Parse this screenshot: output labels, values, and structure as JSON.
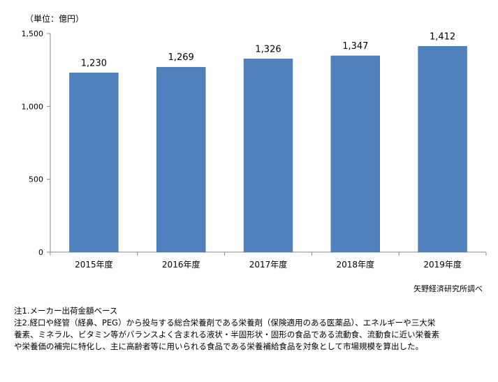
{
  "unit_label": "（単位：億円）",
  "source": "矢野経済研究所調べ",
  "notes": [
    "注1.メーカー出荷金額ベース",
    "注2.経口や経管（経鼻、PEG）から投与する総合栄養剤である栄養剤（保険適用のある医薬品）、エネルギーや三大栄",
    "養素、ミネラル、ビタミン等がバランスよく含まれる液状・半固形状・固形の食品である流動食、流動食に近い栄養素",
    "や栄養価の補完に特化し、主に高齢者等に用いられる食品である栄養補給食品を対象として市場規模を算出した。"
  ],
  "chart_data": {
    "type": "bar",
    "categories": [
      "2015年度",
      "2016年度",
      "2017年度",
      "2018年度",
      "2019年度"
    ],
    "values": [
      1230,
      1269,
      1326,
      1347,
      1412
    ],
    "value_labels": [
      "1,230",
      "1,269",
      "1,326",
      "1,347",
      "1,412"
    ],
    "ylim": [
      0,
      1500
    ],
    "yticks": [
      0,
      500,
      1000,
      1500
    ],
    "ytick_labels": [
      "0",
      "500",
      "1,000",
      "1,500"
    ],
    "bar_color": "#4f81bd",
    "grid": false,
    "legend": "none"
  }
}
